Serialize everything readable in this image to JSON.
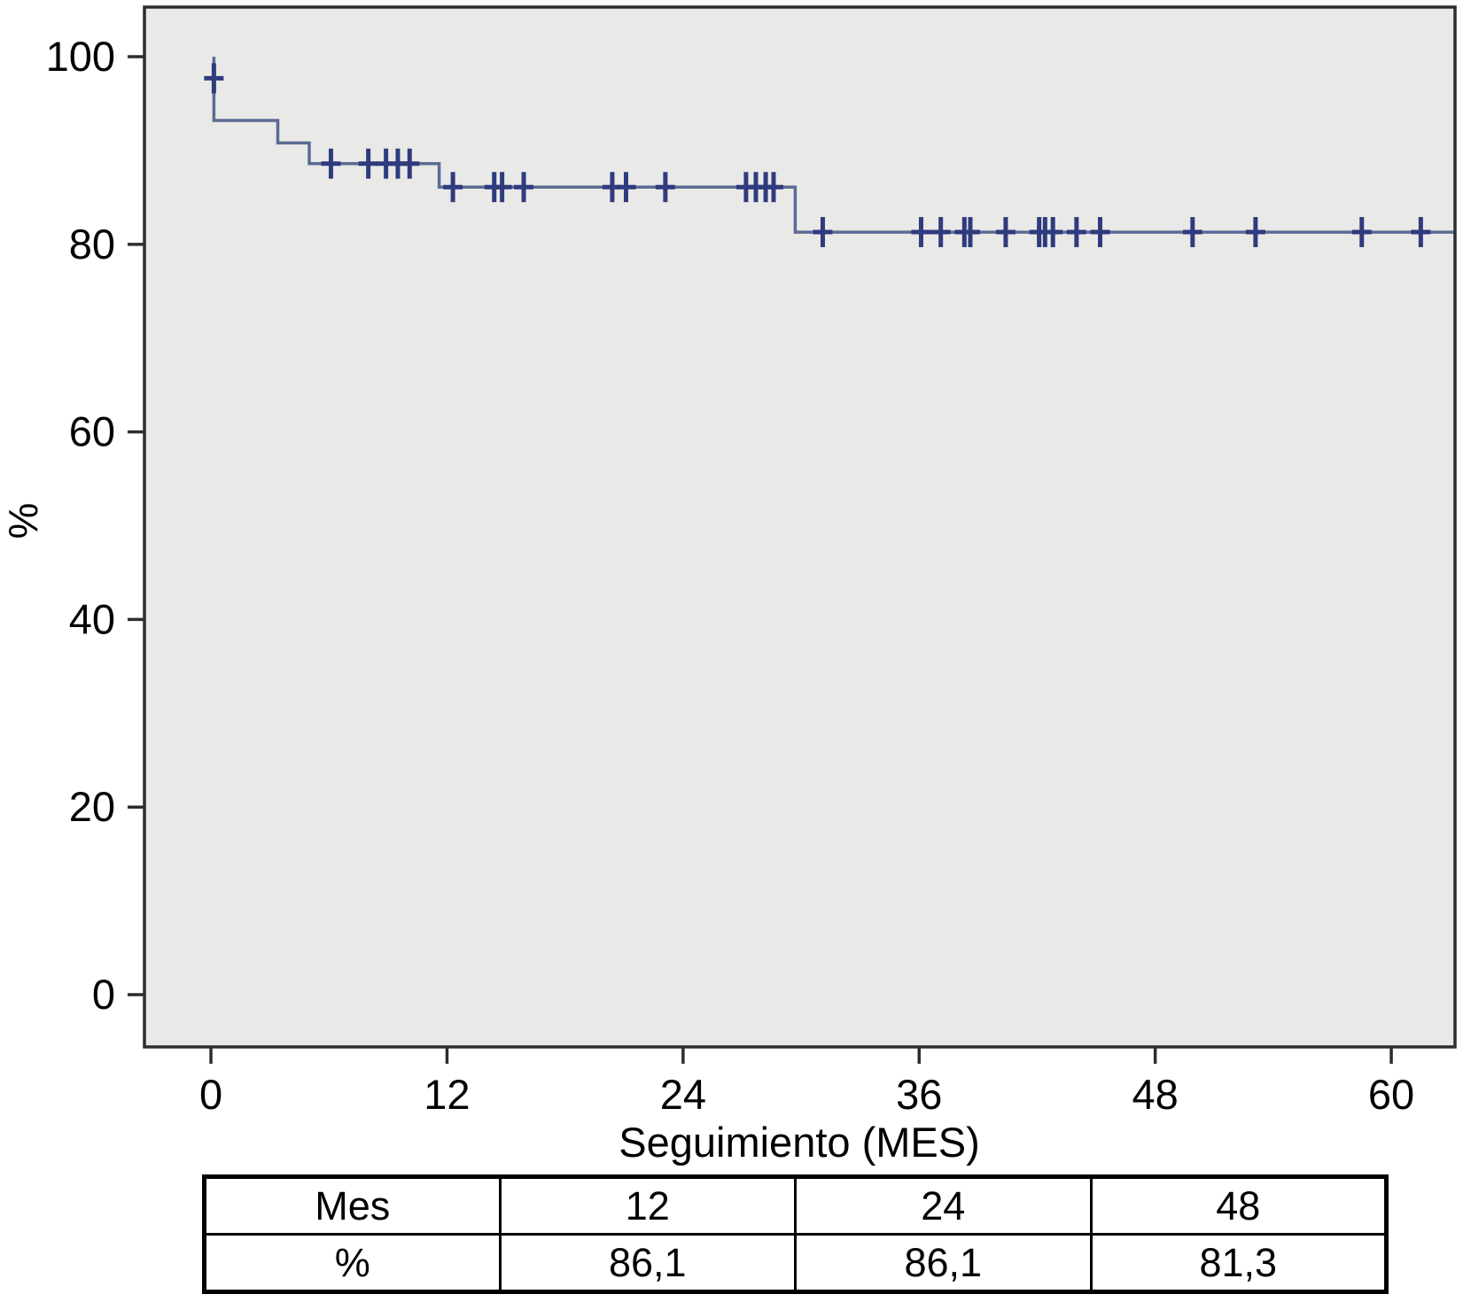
{
  "figure": {
    "kind": "Kaplan-Meier survival curve with censoring marks and summary table"
  },
  "chart_data": {
    "type": "line",
    "subtype": "kaplan-meier-step",
    "title": "",
    "xlabel": "Seguimiento (MES)",
    "ylabel": "%",
    "x_ticks": [
      0,
      12,
      24,
      36,
      48,
      60
    ],
    "y_ticks": [
      0,
      20,
      40,
      60,
      80,
      100
    ],
    "xlim": [
      -3.38,
      63.24
    ],
    "ylim": [
      -5.57,
      105.29
    ],
    "grid": false,
    "legend": "none",
    "background": "#e9e9e7",
    "line_color": "#5c6b94",
    "censor_color": "#2e3b7e",
    "frame_color": "#2d2d2d",
    "points": [
      [
        0.15,
        100.0
      ],
      [
        0.15,
        93.2
      ],
      [
        3.4,
        93.2
      ],
      [
        3.4,
        90.8
      ],
      [
        5.0,
        90.8
      ],
      [
        5.0,
        88.6
      ],
      [
        11.6,
        88.6
      ],
      [
        11.6,
        86.1
      ],
      [
        29.7,
        86.1
      ],
      [
        29.7,
        81.3
      ],
      [
        63.24,
        81.3
      ]
    ],
    "censors": [
      [
        0.15,
        97.7
      ],
      [
        6.1,
        88.6
      ],
      [
        8.0,
        88.6
      ],
      [
        8.9,
        88.6
      ],
      [
        9.5,
        88.6
      ],
      [
        10.1,
        88.6
      ],
      [
        12.3,
        86.1
      ],
      [
        14.4,
        86.1
      ],
      [
        14.8,
        86.1
      ],
      [
        15.9,
        86.1
      ],
      [
        20.4,
        86.1
      ],
      [
        21.1,
        86.1
      ],
      [
        23.1,
        86.1
      ],
      [
        27.2,
        86.1
      ],
      [
        27.7,
        86.1
      ],
      [
        28.2,
        86.1
      ],
      [
        28.6,
        86.1
      ],
      [
        31.1,
        81.3
      ],
      [
        36.1,
        81.3
      ],
      [
        37.1,
        81.3
      ],
      [
        38.3,
        81.3
      ],
      [
        38.6,
        81.3
      ],
      [
        40.4,
        81.3
      ],
      [
        42.1,
        81.3
      ],
      [
        42.4,
        81.3
      ],
      [
        42.8,
        81.3
      ],
      [
        44.0,
        81.3
      ],
      [
        45.2,
        81.3
      ],
      [
        49.9,
        81.3
      ],
      [
        53.1,
        81.3
      ],
      [
        58.5,
        81.3
      ],
      [
        61.5,
        81.3
      ]
    ],
    "key_values": {
      "month_12_pct": "86,1",
      "month_24_pct": "86,1",
      "month_48_pct": "81,3"
    }
  },
  "summary_table": {
    "rows": [
      [
        "Mes",
        "12",
        "24",
        "48"
      ],
      [
        "%",
        "86,1",
        "86,1",
        "81,3"
      ]
    ]
  }
}
